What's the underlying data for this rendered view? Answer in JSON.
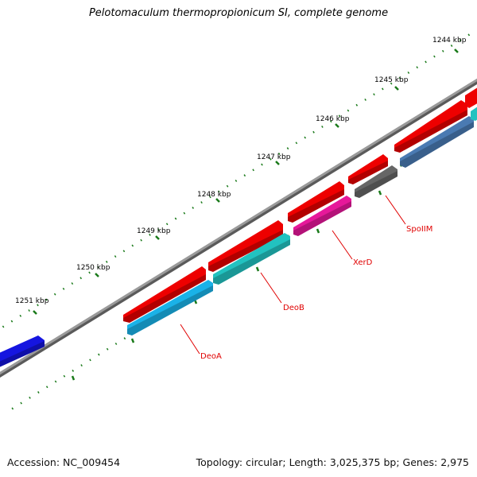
{
  "title": "Pelotomaculum thermopropionicum SI, complete genome",
  "footer": {
    "accession": "Accession: NC_009454",
    "summary": "Topology: circular; Length: 3,025,375 bp; Genes: 2,975"
  },
  "colors": {
    "tick_green": "#1a7a1a",
    "backbone": "#8a8a8a",
    "cds_red": "#ee0000",
    "label_red": "#e00000"
  },
  "ruler": [
    {
      "label": "1244 kbp"
    },
    {
      "label": "1245 kbp"
    },
    {
      "label": "1246 kbp"
    },
    {
      "label": "1247 kbp"
    },
    {
      "label": "1248 kbp"
    },
    {
      "label": "1249 kbp"
    },
    {
      "label": "1250 kbp"
    },
    {
      "label": "1251 kbp"
    }
  ],
  "genes": [
    {
      "name": "DeoA",
      "color": "#1ab2e8"
    },
    {
      "name": "DeoB",
      "color": "#22c2c0"
    },
    {
      "name": "XerD",
      "color": "#e6189a"
    },
    {
      "name": "SpoIIM",
      "color": "#666666"
    },
    {
      "name": "",
      "color": "#4a7ab2"
    },
    {
      "name": "",
      "color": "#22c2c0"
    }
  ],
  "red_features": [
    {
      "color": "#ee0000"
    },
    {
      "color": "#ee0000"
    },
    {
      "color": "#ee0000"
    },
    {
      "color": "#ee0000"
    },
    {
      "color": "#ee0000"
    },
    {
      "color": "#ee0000"
    }
  ],
  "blue_feature": {
    "color": "#1515e0"
  }
}
